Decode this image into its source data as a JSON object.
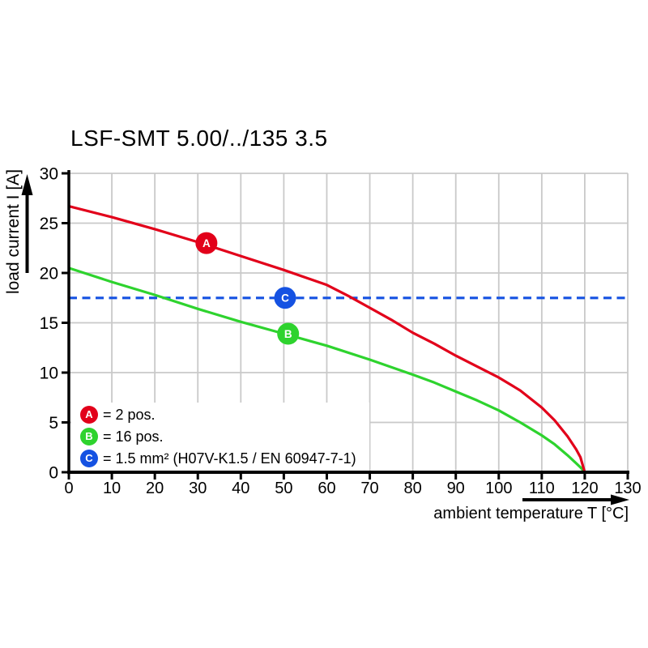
{
  "chart_data": {
    "type": "line",
    "title": "LSF-SMT 5.00/../135 3.5",
    "xlabel": "ambient temperature T [°C]",
    "ylabel": "load current I [A]",
    "xlim": [
      0,
      130
    ],
    "ylim": [
      0,
      30
    ],
    "xticks": [
      0,
      10,
      20,
      30,
      40,
      50,
      60,
      70,
      80,
      90,
      100,
      110,
      120,
      130
    ],
    "yticks": [
      0,
      5,
      10,
      15,
      20,
      25,
      30
    ],
    "grid": true,
    "grid_color": "#c9c9c9",
    "axis_color": "#000000",
    "series": [
      {
        "name": "A",
        "label": "2 pos.",
        "color": "#e2001a",
        "style": "solid",
        "points": [
          [
            0,
            26.7
          ],
          [
            10,
            25.6
          ],
          [
            20,
            24.4
          ],
          [
            30,
            23.1
          ],
          [
            40,
            21.7
          ],
          [
            50,
            20.3
          ],
          [
            60,
            18.8
          ],
          [
            65,
            17.7
          ],
          [
            70,
            16.5
          ],
          [
            75,
            15.3
          ],
          [
            80,
            14.0
          ],
          [
            85,
            12.9
          ],
          [
            90,
            11.7
          ],
          [
            95,
            10.6
          ],
          [
            100,
            9.5
          ],
          [
            105,
            8.2
          ],
          [
            110,
            6.5
          ],
          [
            113,
            5.2
          ],
          [
            116,
            3.6
          ],
          [
            118,
            2.3
          ],
          [
            119,
            1.5
          ],
          [
            120,
            0
          ]
        ]
      },
      {
        "name": "B",
        "label": "16 pos.",
        "color": "#2ed32e",
        "style": "solid",
        "points": [
          [
            0,
            20.5
          ],
          [
            10,
            19.1
          ],
          [
            20,
            17.8
          ],
          [
            30,
            16.4
          ],
          [
            40,
            15.1
          ],
          [
            50,
            13.9
          ],
          [
            60,
            12.7
          ],
          [
            70,
            11.3
          ],
          [
            80,
            9.8
          ],
          [
            85,
            9.0
          ],
          [
            90,
            8.1
          ],
          [
            95,
            7.2
          ],
          [
            100,
            6.2
          ],
          [
            105,
            5.0
          ],
          [
            110,
            3.7
          ],
          [
            113,
            2.8
          ],
          [
            116,
            1.7
          ],
          [
            118,
            0.9
          ],
          [
            119,
            0.5
          ],
          [
            120,
            0
          ]
        ]
      },
      {
        "name": "C",
        "label": "1.5 mm² (H07V-K1.5 / EN 60947-7-1)",
        "color": "#1552e2",
        "style": "dashed",
        "points": [
          [
            0,
            17.5
          ],
          [
            130,
            17.5
          ]
        ]
      }
    ],
    "markers": [
      {
        "letter": "A",
        "x": 32,
        "y": 23.0,
        "color": "#e2001a"
      },
      {
        "letter": "B",
        "x": 51,
        "y": 13.9,
        "color": "#2ed32e"
      },
      {
        "letter": "C",
        "x": 50.3,
        "y": 17.5,
        "color": "#1552e2"
      }
    ],
    "legend": {
      "position": "bottom-left",
      "items": [
        {
          "letter": "A",
          "color": "#e2001a",
          "label": "= 2 pos."
        },
        {
          "letter": "B",
          "color": "#2ed32e",
          "label": "= 16 pos."
        },
        {
          "letter": "C",
          "color": "#1552e2",
          "label": "= 1.5 mm² (H07V-K1.5 / EN 60947-7-1)"
        }
      ]
    }
  }
}
